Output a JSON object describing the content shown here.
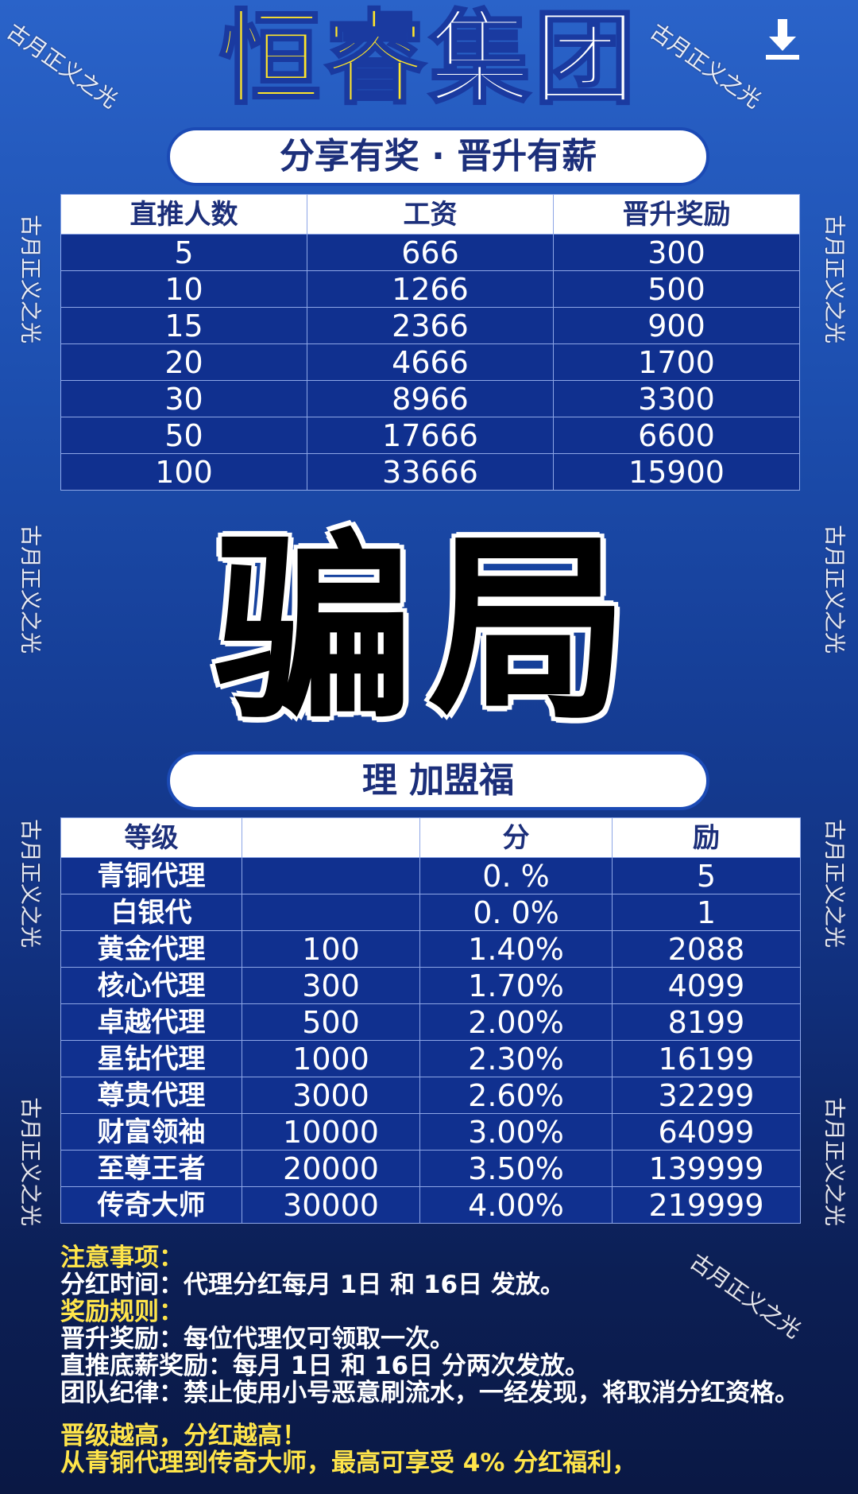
{
  "header": {
    "title_part1": "恒睿",
    "title_part2": "集团",
    "subtitle": "分享有奖 · 晋升有薪",
    "download_icon": "download-icon"
  },
  "table1": {
    "headers": [
      "直推人数",
      "工资",
      "晋升奖励"
    ],
    "rows": [
      [
        "5",
        "666",
        "300"
      ],
      [
        "10",
        "1266",
        "500"
      ],
      [
        "15",
        "2366",
        "900"
      ],
      [
        "20",
        "4666",
        "1700"
      ],
      [
        "30",
        "8966",
        "3300"
      ],
      [
        "50",
        "17666",
        "6600"
      ],
      [
        "100",
        "33666",
        "15900"
      ]
    ]
  },
  "section2": {
    "title": "理      加盟福"
  },
  "table2": {
    "headers": [
      "等级",
      "",
      "分",
      "励"
    ],
    "rows": [
      [
        "青铜代理",
        "",
        "0.  %",
        "5"
      ],
      [
        "白银代",
        "",
        "0.  0%",
        "1"
      ],
      [
        "黄金代理",
        "100",
        "1.40%",
        "2088"
      ],
      [
        "核心代理",
        "300",
        "1.70%",
        "4099"
      ],
      [
        "卓越代理",
        "500",
        "2.00%",
        "8199"
      ],
      [
        "星钻代理",
        "1000",
        "2.30%",
        "16199"
      ],
      [
        "尊贵代理",
        "3000",
        "2.60%",
        "32299"
      ],
      [
        "财富领袖",
        "10000",
        "3.00%",
        "64099"
      ],
      [
        "至尊王者",
        "20000",
        "3.50%",
        "139999"
      ],
      [
        "传奇大师",
        "30000",
        "4.00%",
        "219999"
      ]
    ]
  },
  "notes": {
    "h1": "注意事项：",
    "l1": "分红时间：代理分红每月 1日 和 16日 发放。",
    "h2": "奖励规则：",
    "l2": "晋升奖励：每位代理仅可领取一次。",
    "l3": "直推底薪奖励：每月 1日 和 16日 分两次发放。",
    "l4": "团队纪律：禁止使用小号恶意刷流水，一经发现，将取消分红资格。",
    "h3": "晋级越高，分红越高！",
    "h4": "从青铜代理到传奇大师，最高可享受 4% 分红福利，"
  },
  "overlay": {
    "stamp": "骗局",
    "watermark": "古月正义之光"
  },
  "colors": {
    "accent_yellow": "#ffe52a",
    "table_blue": "#10308f"
  }
}
